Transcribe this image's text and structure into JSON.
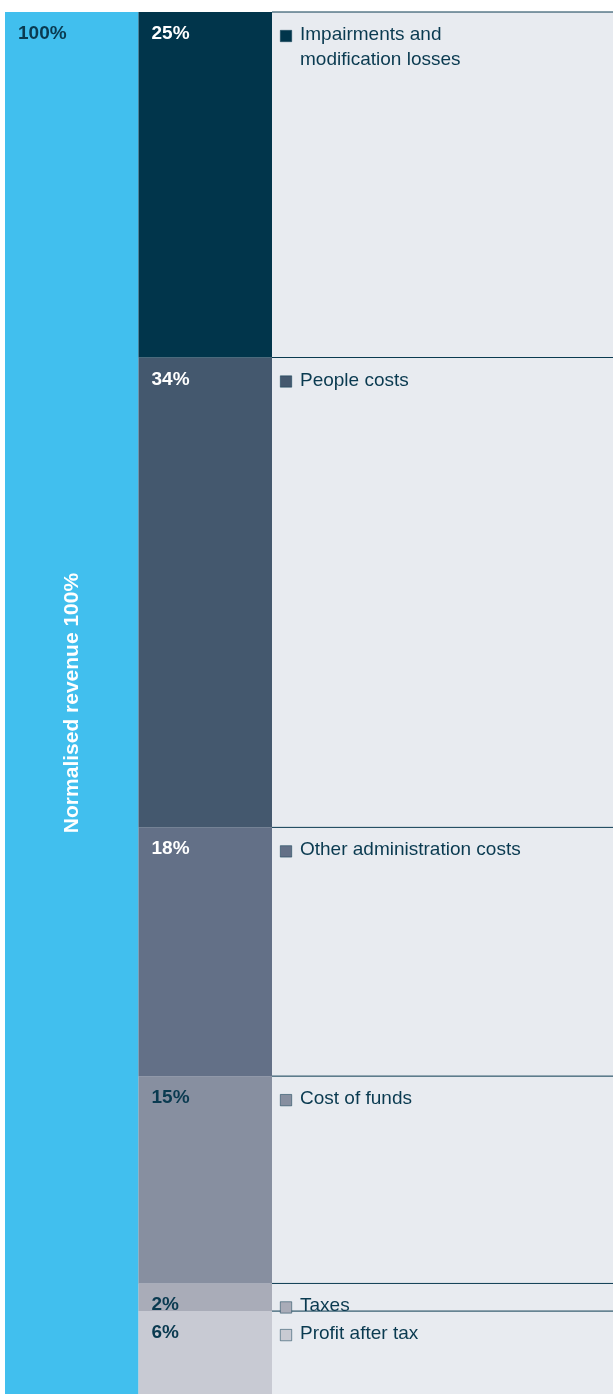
{
  "chart_data": {
    "type": "bar",
    "stacked": true,
    "categories": [
      null,
      null
    ],
    "ylim": [
      0,
      100
    ],
    "tick_labels": false,
    "grid": false,
    "legend": "right",
    "series": [
      {
        "name": "Normalised revenue 100%",
        "color": "#41bfee",
        "values": [
          100,
          null
        ],
        "value_labels": [
          "100%",
          null
        ]
      },
      {
        "name": "Profit after tax",
        "color": "#c8cad3",
        "values": [
          null,
          6
        ],
        "value_labels": [
          null,
          "6%"
        ]
      },
      {
        "name": "Taxes",
        "color": "#a9acb8",
        "values": [
          null,
          2
        ],
        "value_labels": [
          null,
          "2%"
        ]
      },
      {
        "name": "Cost of funds",
        "color": "#878fa0",
        "values": [
          null,
          15
        ],
        "value_labels": [
          null,
          "15%"
        ]
      },
      {
        "name": "Other administration costs",
        "color": "#637087",
        "values": [
          null,
          18
        ],
        "value_labels": [
          null,
          "18%"
        ]
      },
      {
        "name": "People costs",
        "color": "#44586e",
        "values": [
          null,
          34
        ],
        "value_labels": [
          null,
          "34%"
        ]
      },
      {
        "name": "Impairments and modification losses",
        "color": "#01354b",
        "values": [
          null,
          25
        ],
        "value_labels": [
          null,
          "25%"
        ]
      }
    ]
  }
}
